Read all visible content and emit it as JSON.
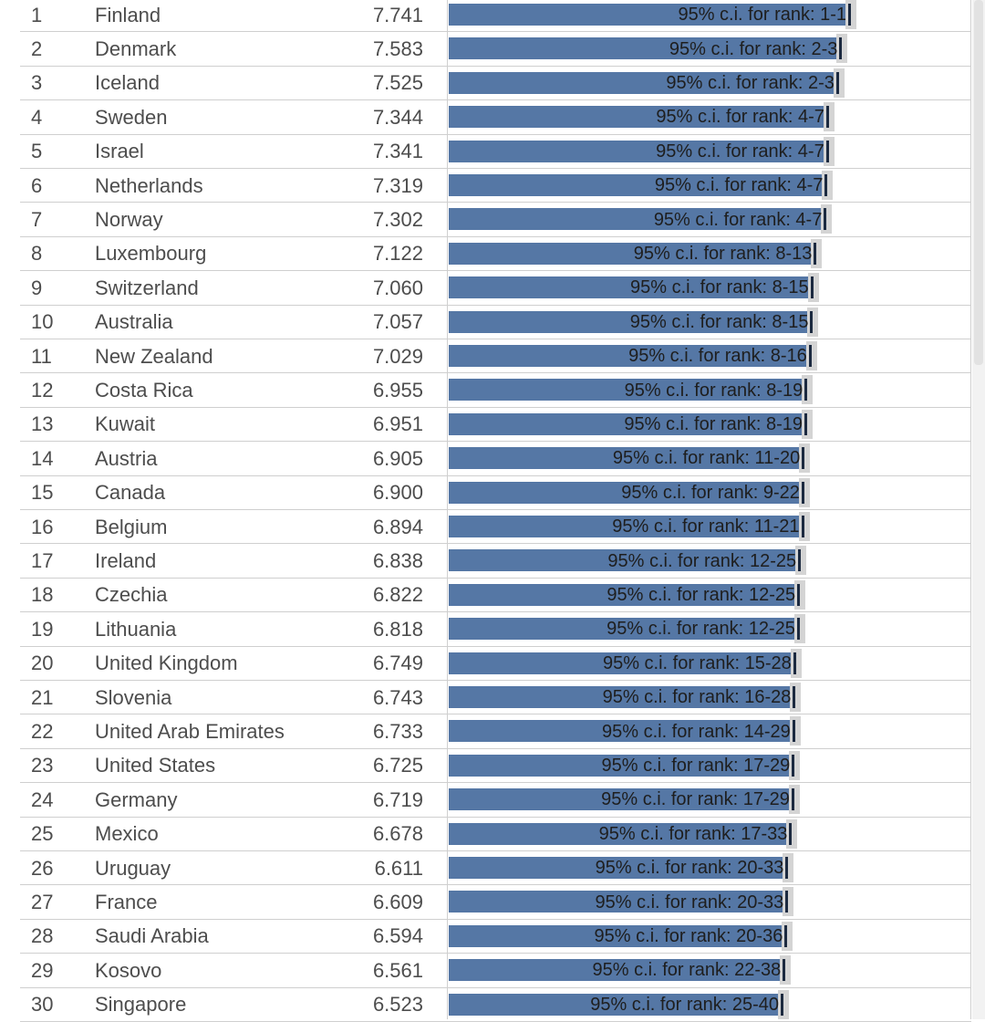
{
  "chart_data": {
    "type": "bar",
    "orientation": "horizontal",
    "label_prefix": "95% c.i. for rank: ",
    "rows": [
      {
        "rank": "1",
        "country": "Finland",
        "score": "7.741",
        "value": 7.741,
        "ci": "1-1"
      },
      {
        "rank": "2",
        "country": "Denmark",
        "score": "7.583",
        "value": 7.583,
        "ci": "2-3"
      },
      {
        "rank": "3",
        "country": "Iceland",
        "score": "7.525",
        "value": 7.525,
        "ci": "2-3"
      },
      {
        "rank": "4",
        "country": "Sweden",
        "score": "7.344",
        "value": 7.344,
        "ci": "4-7"
      },
      {
        "rank": "5",
        "country": "Israel",
        "score": "7.341",
        "value": 7.341,
        "ci": "4-7"
      },
      {
        "rank": "6",
        "country": "Netherlands",
        "score": "7.319",
        "value": 7.319,
        "ci": "4-7"
      },
      {
        "rank": "7",
        "country": "Norway",
        "score": "7.302",
        "value": 7.302,
        "ci": "4-7"
      },
      {
        "rank": "8",
        "country": "Luxembourg",
        "score": "7.122",
        "value": 7.122,
        "ci": "8-13"
      },
      {
        "rank": "9",
        "country": "Switzerland",
        "score": "7.060",
        "value": 7.06,
        "ci": "8-15"
      },
      {
        "rank": "10",
        "country": "Australia",
        "score": "7.057",
        "value": 7.057,
        "ci": "8-15"
      },
      {
        "rank": "11",
        "country": "New Zealand",
        "score": "7.029",
        "value": 7.029,
        "ci": "8-16"
      },
      {
        "rank": "12",
        "country": "Costa Rica",
        "score": "6.955",
        "value": 6.955,
        "ci": "8-19"
      },
      {
        "rank": "13",
        "country": "Kuwait",
        "score": "6.951",
        "value": 6.951,
        "ci": "8-19"
      },
      {
        "rank": "14",
        "country": "Austria",
        "score": "6.905",
        "value": 6.905,
        "ci": "11-20"
      },
      {
        "rank": "15",
        "country": "Canada",
        "score": "6.900",
        "value": 6.9,
        "ci": "9-22"
      },
      {
        "rank": "16",
        "country": "Belgium",
        "score": "6.894",
        "value": 6.894,
        "ci": "11-21"
      },
      {
        "rank": "17",
        "country": "Ireland",
        "score": "6.838",
        "value": 6.838,
        "ci": "12-25"
      },
      {
        "rank": "18",
        "country": "Czechia",
        "score": "6.822",
        "value": 6.822,
        "ci": "12-25"
      },
      {
        "rank": "19",
        "country": "Lithuania",
        "score": "6.818",
        "value": 6.818,
        "ci": "12-25"
      },
      {
        "rank": "20",
        "country": "United Kingdom",
        "score": "6.749",
        "value": 6.749,
        "ci": "15-28"
      },
      {
        "rank": "21",
        "country": "Slovenia",
        "score": "6.743",
        "value": 6.743,
        "ci": "16-28"
      },
      {
        "rank": "22",
        "country": "United Arab Emirates",
        "score": "6.733",
        "value": 6.733,
        "ci": "14-29"
      },
      {
        "rank": "23",
        "country": "United States",
        "score": "6.725",
        "value": 6.725,
        "ci": "17-29"
      },
      {
        "rank": "24",
        "country": "Germany",
        "score": "6.719",
        "value": 6.719,
        "ci": "17-29"
      },
      {
        "rank": "25",
        "country": "Mexico",
        "score": "6.678",
        "value": 6.678,
        "ci": "17-33"
      },
      {
        "rank": "26",
        "country": "Uruguay",
        "score": "6.611",
        "value": 6.611,
        "ci": "20-33"
      },
      {
        "rank": "27",
        "country": "France",
        "score": "6.609",
        "value": 6.609,
        "ci": "20-33"
      },
      {
        "rank": "28",
        "country": "Saudi Arabia",
        "score": "6.594",
        "value": 6.594,
        "ci": "20-36"
      },
      {
        "rank": "29",
        "country": "Kosovo",
        "score": "6.561",
        "value": 6.561,
        "ci": "22-38"
      },
      {
        "rank": "30",
        "country": "Singapore",
        "score": "6.523",
        "value": 6.523,
        "ci": "25-40"
      }
    ],
    "colors": {
      "bar": "#5577a5",
      "whisker": "#d4d4d4",
      "whisker_core": "#1c2a40",
      "grid": "#cfcfcf",
      "text": "#4d4d4d"
    }
  }
}
